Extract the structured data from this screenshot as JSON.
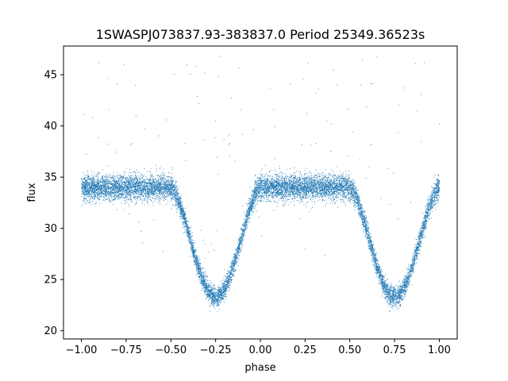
{
  "chart_data": {
    "type": "scatter",
    "title": "1SWASPJ073837.93-383837.0 Period 25349.36523s",
    "xlabel": "phase",
    "ylabel": "flux",
    "xlim": [
      -1.1,
      1.1
    ],
    "ylim": [
      19.2,
      47.8
    ],
    "xticks": [
      -1.0,
      -0.75,
      -0.5,
      -0.25,
      0.0,
      0.25,
      0.5,
      0.75,
      1.0
    ],
    "xtick_labels": [
      "−1.00",
      "−0.75",
      "−0.50",
      "−0.25",
      "0.00",
      "0.25",
      "0.50",
      "0.75",
      "1.00"
    ],
    "yticks": [
      20,
      25,
      30,
      35,
      40,
      45
    ],
    "ytick_labels": [
      "20",
      "25",
      "30",
      "35",
      "40",
      "45"
    ],
    "grid": false,
    "legend": "none",
    "marker_color": "#1f77b4",
    "series": [
      {
        "phase_range": [
          -1.0,
          1.0
        ],
        "baseline_flux": 34.0,
        "eclipse_minima": [
          {
            "phase": -0.25,
            "flux": 23.3,
            "half_width": 0.25
          },
          {
            "phase": 0.75,
            "flux": 23.3,
            "half_width": 0.25
          }
        ],
        "scatter_sigma": 0.6,
        "approx_points": 12000
      }
    ]
  }
}
